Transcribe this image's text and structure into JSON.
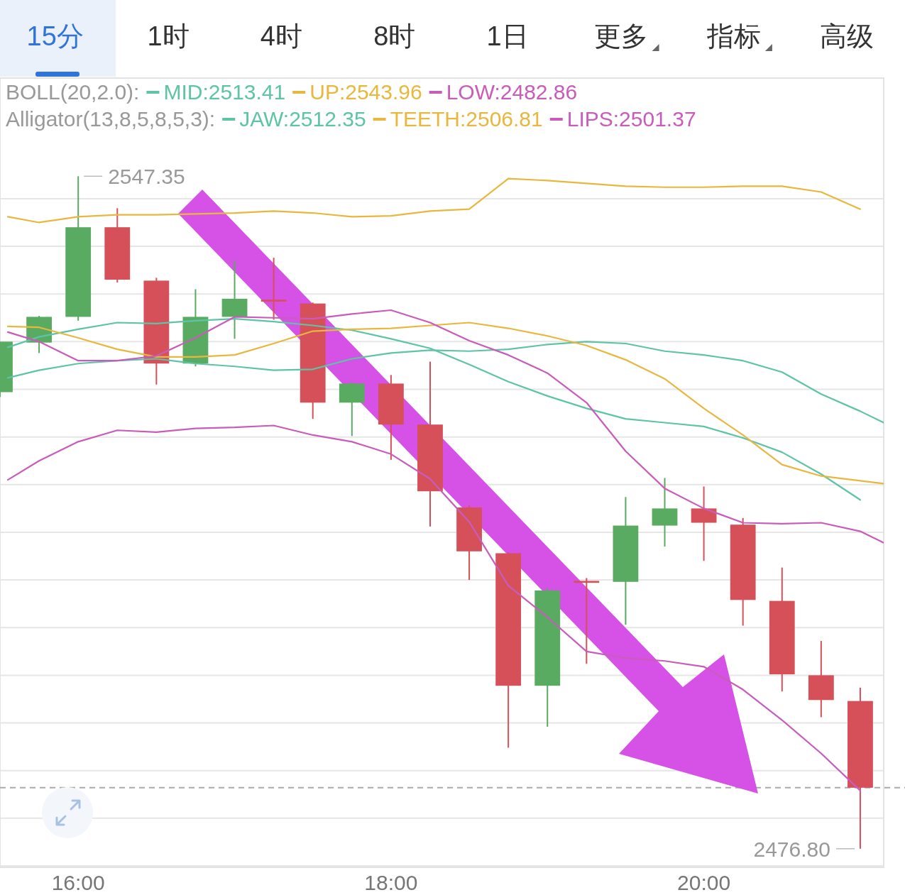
{
  "chart_data": {
    "type": "candlestick",
    "x": [
      15.5,
      15.75,
      16,
      16.25,
      16.5,
      16.75,
      17,
      17.25,
      17.5,
      17.75,
      18,
      18.25,
      18.5,
      18.75,
      19,
      19.25,
      19.5,
      19.75,
      20,
      20.25,
      20.5,
      20.75,
      21
    ],
    "ohlc": [
      [
        2524.7,
        2530.0,
        2524.2,
        2530.0
      ],
      [
        2529.9,
        2532.7,
        2528.8,
        2532.6
      ],
      [
        2532.6,
        2547.35,
        2532.2,
        2542.0
      ],
      [
        2542.0,
        2544.0,
        2536.2,
        2536.5
      ],
      [
        2536.4,
        2536.7,
        2525.5,
        2527.7
      ],
      [
        2527.7,
        2535.5,
        2527.4,
        2532.6
      ],
      [
        2532.6,
        2538.5,
        2530.3,
        2534.5
      ],
      [
        2534.4,
        2538.8,
        2532.3,
        2534.2
      ],
      [
        2534.0,
        2534.1,
        2521.9,
        2523.6
      ],
      [
        2523.6,
        2525.8,
        2520.1,
        2525.6
      ],
      [
        2525.6,
        2526.5,
        2517.6,
        2521.3
      ],
      [
        2521.3,
        2527.9,
        2510.6,
        2514.3
      ],
      [
        2512.6,
        2512.8,
        2505.0,
        2508.0
      ],
      [
        2507.8,
        2507.9,
        2487.4,
        2493.9
      ],
      [
        2493.9,
        2504.1,
        2489.6,
        2503.9
      ],
      [
        2504.9,
        2505.2,
        2496.2,
        2504.7
      ],
      [
        2504.8,
        2513.7,
        2500.3,
        2510.7
      ],
      [
        2510.7,
        2515.7,
        2508.5,
        2512.5
      ],
      [
        2512.5,
        2514.8,
        2507.0,
        2511.0
      ],
      [
        2510.8,
        2511.5,
        2500.2,
        2502.9
      ],
      [
        2502.8,
        2506.3,
        2493.3,
        2495.1
      ],
      [
        2495.0,
        2498.6,
        2490.6,
        2492.4
      ],
      [
        2492.3,
        2493.7,
        2476.8,
        2483.2
      ]
    ],
    "colors": [
      "#5aab62",
      "#5aab62",
      "#5aab62",
      "#d6505a",
      "#d6505a",
      "#5aab62",
      "#5aab62",
      "#d6505a",
      "#d6505a",
      "#5aab62",
      "#d6505a",
      "#d6505a",
      "#d6505a",
      "#d6505a",
      "#5aab62",
      "#d6505a",
      "#5aab62",
      "#5aab62",
      "#d6505a",
      "#d6505a",
      "#d6505a",
      "#d6505a",
      "#d6505a"
    ],
    "series": [
      {
        "name": "MID:2513.41",
        "type": "line",
        "color": "#5ec4a6",
        "x": [
          15.55,
          15.75,
          16,
          16.25,
          16.5,
          16.75,
          17,
          17.25,
          17.5,
          17.75,
          18,
          18.25,
          18.5,
          18.75,
          19,
          19.25,
          19.5,
          19.75,
          20,
          20.25,
          20.5,
          20.75,
          21
        ],
        "values": [
          2529.4,
          2530.5,
          2531.3,
          2532.0,
          2531.9,
          2532.2,
          2532.4,
          2532.1,
          2531.7,
          2531.2,
          2530.3,
          2529.3,
          2527.6,
          2525.8,
          2524.3,
          2523.0,
          2521.9,
          2521.5,
          2521.1,
          2519.9,
          2518.4,
          2516.1,
          2513.4
        ]
      },
      {
        "name": "UP:2543.96",
        "type": "line",
        "color": "#e8b73e",
        "x": [
          15.55,
          15.75,
          16,
          16.25,
          16.5,
          16.75,
          17,
          17.25,
          17.5,
          17.75,
          18,
          18.25,
          18.5,
          18.75,
          19,
          19.25,
          19.5,
          19.75,
          20,
          20.25,
          20.5,
          20.75,
          21
        ],
        "values": [
          2543.1,
          2542.5,
          2543.1,
          2543.3,
          2543.3,
          2543.4,
          2543.5,
          2543.7,
          2543.5,
          2543.1,
          2543.2,
          2543.7,
          2543.9,
          2547.1,
          2546.9,
          2546.6,
          2546.3,
          2546.2,
          2546.2,
          2546.3,
          2546.3,
          2545.7,
          2543.9
        ]
      },
      {
        "name": "LOW:2482.86",
        "type": "line",
        "color": "#c95cba",
        "x": [
          15.55,
          15.75,
          16,
          16.25,
          16.5,
          16.75,
          17,
          17.25,
          17.5,
          17.75,
          18,
          18.25,
          18.5,
          18.75,
          19,
          19.25,
          19.5,
          19.75,
          20,
          20.25,
          20.5,
          20.75,
          21
        ],
        "values": [
          2515.5,
          2517.5,
          2519.5,
          2520.7,
          2520.5,
          2520.9,
          2521.0,
          2521.2,
          2520.2,
          2519.5,
          2518.2,
          2515.6,
          2511.1,
          2504.4,
          2501.1,
          2497.5,
          2496.8,
          2496.5,
          2495.9,
          2493.5,
          2490.3,
          2486.8,
          2482.9
        ]
      },
      {
        "name": "JAW:2512.35",
        "type": "line",
        "color": "#5ec4a6",
        "x": [
          15.55,
          15.75,
          16,
          16.25,
          16.5,
          16.75,
          17,
          17.25,
          17.5,
          17.75,
          18,
          18.25,
          18.5,
          18.75,
          19,
          19.25,
          19.5,
          19.75,
          20,
          20.25,
          20.5,
          20.75,
          21,
          21.15
        ],
        "values": [
          2526.2,
          2527.0,
          2527.7,
          2528.0,
          2528.2,
          2527.7,
          2527.4,
          2527.0,
          2527.1,
          2528.2,
          2528.8,
          2529.1,
          2529.0,
          2529.2,
          2529.7,
          2530.0,
          2529.8,
          2529.0,
          2528.6,
          2528.0,
          2526.8,
          2524.5,
          2522.7,
          2521.5
        ]
      },
      {
        "name": "TEETH:2506.81",
        "type": "line",
        "color": "#e8b73e",
        "x": [
          15.55,
          15.75,
          16,
          16.25,
          16.5,
          16.75,
          17,
          17.25,
          17.5,
          17.75,
          18,
          18.25,
          18.5,
          18.75,
          19,
          19.25,
          19.5,
          19.75,
          20,
          20.25,
          20.5,
          20.75,
          21,
          21.15
        ],
        "values": [
          2531.6,
          2531.5,
          2530.4,
          2529.2,
          2528.4,
          2528.4,
          2528.6,
          2529.8,
          2531.1,
          2531.3,
          2531.4,
          2531.7,
          2532.0,
          2531.4,
          2530.6,
          2529.6,
          2528.1,
          2526.1,
          2523.0,
          2520.2,
          2517.1,
          2515.9,
          2515.4,
          2515.1
        ]
      },
      {
        "name": "LIPS:2501.37",
        "type": "line",
        "color": "#c95cba",
        "x": [
          15.55,
          15.75,
          16,
          16.25,
          16.5,
          16.75,
          17,
          17.25,
          17.5,
          17.75,
          18,
          18.25,
          18.5,
          18.75,
          19,
          19.25,
          19.5,
          19.75,
          20,
          20.25,
          20.5,
          20.75,
          21,
          21.15
        ],
        "values": [
          2531.0,
          2530.0,
          2528.0,
          2528.0,
          2528.5,
          2530.4,
          2532.6,
          2532.5,
          2532.4,
          2532.9,
          2533.3,
          2532.0,
          2530.1,
          2528.6,
          2526.7,
          2523.6,
          2518.5,
          2514.6,
          2512.5,
          2511.0,
          2510.9,
          2511.0,
          2510.1,
          2508.9
        ]
      }
    ],
    "xlim": [
      15.5,
      21.15
    ],
    "ylim": [
      2474.85,
      2557.65
    ],
    "xticks": [
      {
        "value": 16,
        "label": "16:00"
      },
      {
        "value": 18,
        "label": "18:00"
      },
      {
        "value": 20,
        "label": "20:00"
      }
    ],
    "yticks": [
      {
        "value": 2475,
        "label": null
      },
      {
        "value": 2480,
        "label": null
      },
      {
        "value": 2485,
        "label": null
      },
      {
        "value": 2490,
        "label": null
      },
      {
        "value": 2495,
        "label": null
      },
      {
        "value": 2500,
        "label": null
      },
      {
        "value": 2505,
        "label": null
      },
      {
        "value": 2510,
        "label": null
      },
      {
        "value": 2515,
        "label": null
      },
      {
        "value": 2520,
        "label": null
      },
      {
        "value": 2525,
        "label": null
      },
      {
        "value": 2530,
        "label": null
      },
      {
        "value": 2535,
        "label": null
      },
      {
        "value": 2540,
        "label": null
      },
      {
        "value": 2545,
        "label": null
      }
    ],
    "tick_labels": "x",
    "grid": "y",
    "legend": "top left",
    "ref_lines": [
      {
        "axis": "y",
        "value": 2483.2,
        "color": "#aaaaaa",
        "line_style": "dashed"
      }
    ],
    "annotations": [
      "15分",
      "1时",
      "4时",
      "8时",
      "1日",
      "更多",
      "指标",
      "高级",
      "BOLL(20,2.0):",
      "Alligator(13,8,5,8,5,3):",
      {
        "text": "2547.35",
        "x": 16,
        "y": 2547.35
      },
      {
        "text": "2476.80",
        "x": 21,
        "y": 2476.8
      }
    ]
  }
}
